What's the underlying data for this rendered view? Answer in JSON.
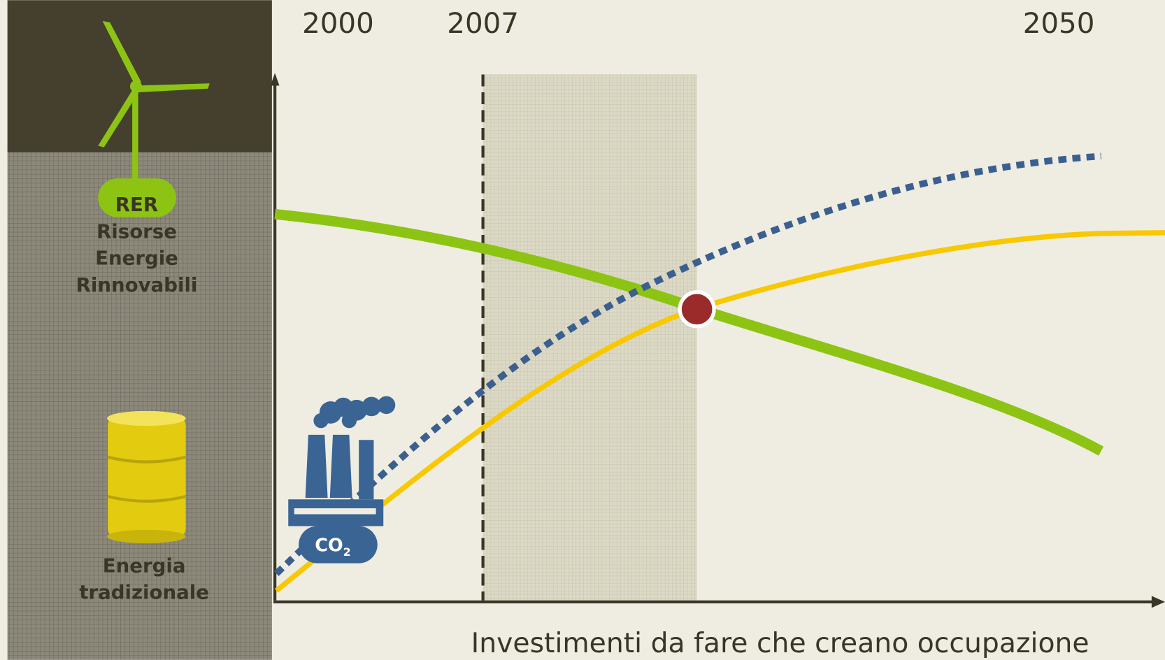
{
  "timeline": {
    "labels": [
      "2000",
      "2007",
      "2050"
    ]
  },
  "renewables": {
    "badge": "RER",
    "lines": [
      "Risorse",
      "Energie",
      "Rinnovabili"
    ]
  },
  "traditional": {
    "lines": [
      "Energia",
      "tradizionale"
    ]
  },
  "factory": {
    "label": "CO",
    "subscript": "2"
  },
  "caption": "Investimenti da fare che creano occupazione"
}
